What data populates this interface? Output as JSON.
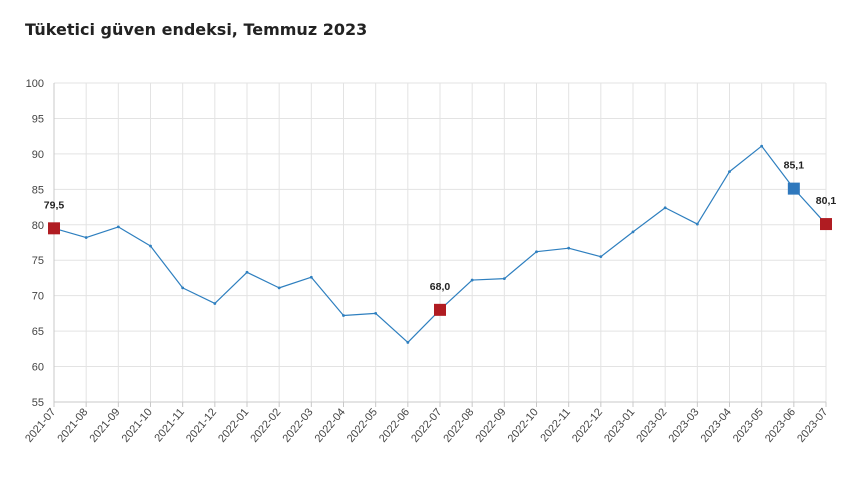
{
  "chart_data": {
    "type": "line",
    "title": "Tüketici güven endeksi, Temmuz 2023",
    "xlabel": "",
    "ylabel": "",
    "ylim": [
      55,
      100
    ],
    "yticks": [
      "55",
      "60",
      "65",
      "70",
      "75",
      "80",
      "85",
      "90",
      "95",
      "100"
    ],
    "grid": true,
    "categories": [
      "2021-07",
      "2021-08",
      "2021-09",
      "2021-10",
      "2021-11",
      "2021-12",
      "2022-01",
      "2022-02",
      "2022-03",
      "2022-04",
      "2022-05",
      "2022-06",
      "2022-07",
      "2022-08",
      "2022-09",
      "2022-10",
      "2022-11",
      "2022-12",
      "2023-01",
      "2023-02",
      "2023-03",
      "2023-04",
      "2023-05",
      "2023-06",
      "2023-07"
    ],
    "series": [
      {
        "values": [
          79.5,
          78.2,
          79.7,
          77.0,
          71.1,
          68.9,
          73.3,
          71.1,
          72.6,
          67.2,
          67.5,
          63.4,
          68.0,
          72.2,
          72.4,
          76.2,
          76.7,
          75.5,
          79.0,
          82.4,
          80.1,
          87.5,
          91.1,
          85.1,
          80.1
        ],
        "color": "#2e7fbf"
      }
    ],
    "highlights": [
      {
        "index": 0,
        "label": "79,5",
        "color": "#b01c22"
      },
      {
        "index": 12,
        "label": "68,0",
        "color": "#b01c22"
      },
      {
        "index": 23,
        "label": "85,1",
        "color": "#2f78bd"
      },
      {
        "index": 24,
        "label": "80,1",
        "color": "#b01c22"
      }
    ],
    "colors": {
      "line": "#2e7fbf",
      "grid": "#e3e3e3",
      "axis": "#c8c8c8"
    }
  }
}
